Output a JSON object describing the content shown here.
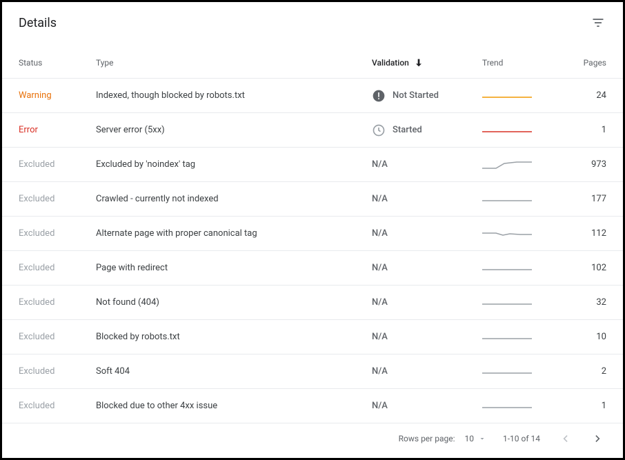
{
  "title": "Details",
  "columns": {
    "status": "Status",
    "type": "Type",
    "validation": "Validation",
    "trend": "Trend",
    "pages": "Pages"
  },
  "status_colors": {
    "Warning": "#e8710a",
    "Error": "#d93025",
    "Excluded": "#9aa0a6"
  },
  "trend_colors": {
    "warning": "#f29900",
    "error": "#d93025",
    "neutral": "#9aa0a6"
  },
  "rows": [
    {
      "status": "Warning",
      "type": "Indexed, though blocked by robots.txt",
      "validation": "Not Started",
      "val_icon": "alert",
      "trend": "flat",
      "trend_color": "warning",
      "pages": "24"
    },
    {
      "status": "Error",
      "type": "Server error (5xx)",
      "validation": "Started",
      "val_icon": "clock",
      "trend": "flat",
      "trend_color": "error",
      "pages": "1"
    },
    {
      "status": "Excluded",
      "type": "Excluded by 'noindex' tag",
      "validation": "N/A",
      "val_icon": "",
      "trend": "rise",
      "trend_color": "neutral",
      "pages": "973"
    },
    {
      "status": "Excluded",
      "type": "Crawled - currently not indexed",
      "validation": "N/A",
      "val_icon": "",
      "trend": "flat",
      "trend_color": "neutral",
      "pages": "177"
    },
    {
      "status": "Excluded",
      "type": "Alternate page with proper canonical tag",
      "validation": "N/A",
      "val_icon": "",
      "trend": "dip",
      "trend_color": "neutral",
      "pages": "112"
    },
    {
      "status": "Excluded",
      "type": "Page with redirect",
      "validation": "N/A",
      "val_icon": "",
      "trend": "flat",
      "trend_color": "neutral",
      "pages": "102"
    },
    {
      "status": "Excluded",
      "type": "Not found (404)",
      "validation": "N/A",
      "val_icon": "",
      "trend": "flat",
      "trend_color": "neutral",
      "pages": "32"
    },
    {
      "status": "Excluded",
      "type": "Blocked by robots.txt",
      "validation": "N/A",
      "val_icon": "",
      "trend": "flat",
      "trend_color": "neutral",
      "pages": "10"
    },
    {
      "status": "Excluded",
      "type": "Soft 404",
      "validation": "N/A",
      "val_icon": "",
      "trend": "flat",
      "trend_color": "neutral",
      "pages": "2"
    },
    {
      "status": "Excluded",
      "type": "Blocked due to other 4xx issue",
      "validation": "N/A",
      "val_icon": "",
      "trend": "flat",
      "trend_color": "neutral",
      "pages": "1"
    }
  ],
  "pager": {
    "rows_per_page_label": "Rows per page:",
    "rows_per_page_value": "10",
    "range": "1-10 of 14",
    "prev_enabled": false,
    "next_enabled": true
  }
}
